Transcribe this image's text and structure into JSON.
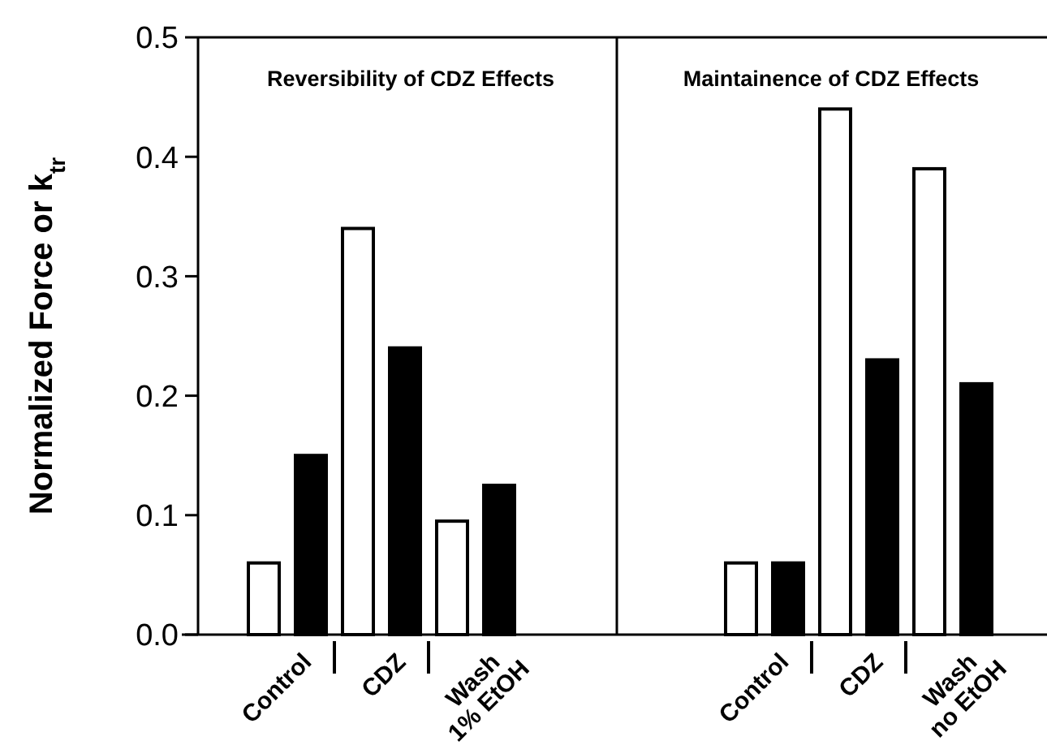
{
  "chart_data": [
    {
      "type": "bar",
      "title": "Reversibility of CDZ Effects",
      "ylabel": "Normalized Force or k$_{tr}$",
      "categories": [
        "Control",
        "CDZ",
        "Wash 1% EtOH"
      ],
      "series": [
        {
          "color": "#ffffff",
          "values": [
            0.06,
            0.34,
            0.095
          ]
        },
        {
          "color": "#000000",
          "values": [
            0.15,
            0.24,
            0.125
          ]
        }
      ],
      "ylim": [
        0,
        0.5
      ],
      "yticks": [
        {
          "value": 0,
          "label": "0.0"
        },
        0.1,
        0.2,
        0.3,
        0.4,
        0.5
      ],
      "grid": false
    },
    {
      "type": "bar",
      "title": "Maintainence of CDZ Effects",
      "categories": [
        "Control",
        "CDZ",
        "Wash no EtOH"
      ],
      "series": [
        {
          "color": "#ffffff",
          "values": [
            0.06,
            0.44,
            0.39
          ]
        },
        {
          "color": "#000000",
          "values": [
            0.06,
            0.23,
            0.21
          ]
        }
      ],
      "ylim": [
        0,
        0.5
      ],
      "tick_labels": "x",
      "grid": false
    }
  ]
}
